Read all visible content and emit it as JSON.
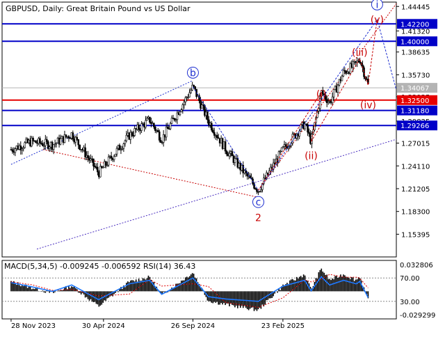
{
  "header": {
    "symbol": "GBPUSD",
    "timeframe": "Daily",
    "description": "Great Britain Pound vs US Dollar"
  },
  "colors": {
    "candle": "#000000",
    "blue_level": "#0000c8",
    "red_level": "#e60000",
    "current_price": "#b4b4b4",
    "wave_blue": "#1e2fd0",
    "wave_red": "#c80000",
    "macd_hist": "#000000",
    "macd_signal": "#e00000",
    "rsi": "#1e78ff"
  },
  "chart_data": [
    {
      "type": "line",
      "subtype": "candlestick",
      "title": "GBPUSD, Daily:  Great Britain Pound vs US Dollar",
      "x_ticks": [
        "28 Nov 2023",
        "30 Apr 2024",
        "26 Sep 2024",
        "23 Feb 2025"
      ],
      "y_ticks": [
        1.44445,
        1.4132,
        1.38635,
        1.3573,
        1.32925,
        1.29825,
        1.27015,
        1.2411,
        1.21205,
        1.183,
        1.15395
      ],
      "ylim": [
        1.125,
        1.45
      ],
      "price_path": [
        {
          "x": "2023-11-28",
          "y": 1.262
        },
        {
          "x": "2024-01-01",
          "y": 1.272
        },
        {
          "x": "2024-02-05",
          "y": 1.268
        },
        {
          "x": "2024-03-08",
          "y": 1.282
        },
        {
          "x": "2024-04-22",
          "y": 1.232
        },
        {
          "x": "2024-06-12",
          "y": 1.28
        },
        {
          "x": "2024-07-16",
          "y": 1.3
        },
        {
          "x": "2024-08-05",
          "y": 1.275
        },
        {
          "x": "2024-09-26",
          "y": 1.342
        },
        {
          "x": "2024-10-22",
          "y": 1.298
        },
        {
          "x": "2024-11-20",
          "y": 1.262
        },
        {
          "x": "2025-01-13",
          "y": 1.21
        },
        {
          "x": "2025-02-23",
          "y": 1.262
        },
        {
          "x": "2025-03-31",
          "y": 1.295
        },
        {
          "x": "2025-04-11",
          "y": 1.272
        },
        {
          "x": "2025-04-28",
          "y": 1.335
        },
        {
          "x": "2025-05-12",
          "y": 1.322
        },
        {
          "x": "2025-06-04",
          "y": 1.36
        },
        {
          "x": "2025-06-25",
          "y": 1.371
        },
        {
          "x": "2025-07-01",
          "y": 1.378
        },
        {
          "x": "2025-07-15",
          "y": 1.344
        }
      ],
      "levels": [
        {
          "value": 1.4222,
          "label": "1.42200",
          "color": "#0000c8"
        },
        {
          "value": 1.4,
          "label": "1.40000",
          "color": "#0000c8"
        },
        {
          "value": 1.34067,
          "label": "1.34067",
          "color": "#b4b4b4"
        },
        {
          "value": 1.325,
          "label": "1.32500",
          "color": "#e60000"
        },
        {
          "value": 1.3118,
          "label": "1.31180",
          "color": "#0000c8"
        },
        {
          "value": 1.29266,
          "label": "1.29266",
          "color": "#0000c8"
        }
      ],
      "wave_labels": [
        {
          "text": "b",
          "x": "2024-09-26",
          "y": 1.36,
          "color": "#1e2fd0",
          "circled": true
        },
        {
          "text": "c",
          "x": "2025-01-13",
          "y": 1.195,
          "color": "#1e2fd0",
          "circled": true
        },
        {
          "text": "i",
          "x": "2025-07-30",
          "y": 1.447,
          "color": "#1e2fd0",
          "circled": true
        },
        {
          "text": "2",
          "x": "2025-01-13",
          "y": 1.175,
          "color": "#c80000",
          "circled": false
        },
        {
          "text": "(i)",
          "x": "2025-04-28",
          "y": 1.333,
          "color": "#c80000",
          "circled": false
        },
        {
          "text": "(ii)",
          "x": "2025-04-11",
          "y": 1.254,
          "color": "#c80000",
          "circled": false
        },
        {
          "text": "(iii)",
          "x": "2025-07-01",
          "y": 1.386,
          "color": "#c80000",
          "circled": false
        },
        {
          "text": "(iv)",
          "x": "2025-07-15",
          "y": 1.319,
          "color": "#c80000",
          "circled": false
        },
        {
          "text": "(v)",
          "x": "2025-07-30",
          "y": 1.428,
          "color": "#c80000",
          "circled": false
        }
      ],
      "blue_wave_path": [
        {
          "x": "2024-09-26",
          "y": 1.342
        },
        {
          "x": "2025-01-13",
          "y": 1.21
        },
        {
          "x": "2025-07-30",
          "y": 1.428
        },
        {
          "x": "2025-08-31",
          "y": 1.338
        }
      ],
      "red_wave_path": [
        {
          "x": "2025-01-13",
          "y": 1.21
        },
        {
          "x": "2025-04-28",
          "y": 1.335
        },
        {
          "x": "2025-04-11",
          "y": 1.272
        },
        {
          "x": "2025-07-01",
          "y": 1.378
        },
        {
          "x": "2025-07-15",
          "y": 1.344
        },
        {
          "x": "2025-07-30",
          "y": 1.428
        }
      ],
      "channel_lines": [
        {
          "color": "#1e2fd0",
          "from": {
            "x": "2023-11-28",
            "y": 1.243
          },
          "to": {
            "x": "2024-09-26",
            "y": 1.35
          }
        },
        {
          "color": "#4a2fc0",
          "from": {
            "x": "2024-01-10",
            "y": 1.135
          },
          "to": {
            "x": "2025-08-31",
            "y": 1.275
          }
        },
        {
          "color": "#c80000",
          "from": {
            "x": "2025-01-13",
            "y": 1.21
          },
          "to": {
            "x": "2025-08-31",
            "y": 1.448
          }
        },
        {
          "color": "#c80000",
          "from": {
            "x": "2024-01-20",
            "y": 1.262
          },
          "to": {
            "x": "2025-01-13",
            "y": 1.201
          }
        }
      ]
    },
    {
      "type": "line",
      "title": "MACD(5,34,5) -0.009245 -0.006592 RSI(14) 36.43",
      "y_ticks_left": [
        "0.032806",
        "-0.029299"
      ],
      "y_ticks_right": [
        "70.00",
        "30.00"
      ],
      "ylim": [
        -0.0293,
        0.0328
      ],
      "macd_path": [
        {
          "x": "2023-11-28",
          "y": 0.01
        },
        {
          "x": "2024-01-01",
          "y": 0.004
        },
        {
          "x": "2024-02-05",
          "y": -0.002
        },
        {
          "x": "2024-03-08",
          "y": 0.006
        },
        {
          "x": "2024-04-22",
          "y": -0.016
        },
        {
          "x": "2024-06-12",
          "y": 0.01
        },
        {
          "x": "2024-07-16",
          "y": 0.015
        },
        {
          "x": "2024-08-05",
          "y": -0.004
        },
        {
          "x": "2024-09-26",
          "y": 0.02
        },
        {
          "x": "2024-10-22",
          "y": -0.01
        },
        {
          "x": "2024-11-20",
          "y": -0.014
        },
        {
          "x": "2025-01-13",
          "y": -0.02
        },
        {
          "x": "2025-02-23",
          "y": 0.006
        },
        {
          "x": "2025-03-31",
          "y": 0.018
        },
        {
          "x": "2025-04-11",
          "y": 0.002
        },
        {
          "x": "2025-04-28",
          "y": 0.024
        },
        {
          "x": "2025-05-12",
          "y": 0.012
        },
        {
          "x": "2025-06-04",
          "y": 0.018
        },
        {
          "x": "2025-06-25",
          "y": 0.012
        },
        {
          "x": "2025-07-01",
          "y": 0.016
        },
        {
          "x": "2025-07-15",
          "y": -0.009
        }
      ],
      "rsi_path": [
        {
          "x": "2023-11-28",
          "y": 62
        },
        {
          "x": "2024-01-01",
          "y": 55
        },
        {
          "x": "2024-02-05",
          "y": 47
        },
        {
          "x": "2024-03-08",
          "y": 58
        },
        {
          "x": "2024-04-22",
          "y": 33
        },
        {
          "x": "2024-06-12",
          "y": 60
        },
        {
          "x": "2024-07-16",
          "y": 66
        },
        {
          "x": "2024-08-05",
          "y": 42
        },
        {
          "x": "2024-09-26",
          "y": 70
        },
        {
          "x": "2024-10-22",
          "y": 38
        },
        {
          "x": "2024-11-20",
          "y": 34
        },
        {
          "x": "2025-01-13",
          "y": 30
        },
        {
          "x": "2025-02-23",
          "y": 56
        },
        {
          "x": "2025-03-31",
          "y": 66
        },
        {
          "x": "2025-04-11",
          "y": 48
        },
        {
          "x": "2025-04-28",
          "y": 72
        },
        {
          "x": "2025-05-12",
          "y": 58
        },
        {
          "x": "2025-06-04",
          "y": 66
        },
        {
          "x": "2025-06-25",
          "y": 60
        },
        {
          "x": "2025-07-01",
          "y": 64
        },
        {
          "x": "2025-07-15",
          "y": 36.43
        }
      ]
    }
  ]
}
